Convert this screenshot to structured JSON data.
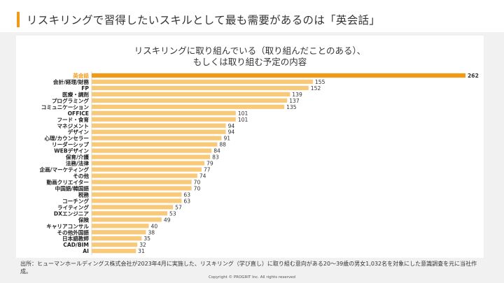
{
  "page": {
    "title": "リスキリングで習得したいスキルとして最も需要があるのは「英会話」",
    "source_note": "出所：ヒューマンホールディングス株式会社が2023年4月に実施した、リスキリング（学び直し）に取り組む意向がある20〜39歳の男女1,032名を対象にした意識調査を元に当社作成。",
    "copyright": "Copyright © PROGRIT Inc. All rights reserved",
    "colors": {
      "accent": "#f29a16",
      "bar": "#f9c97a",
      "highlight": "#f29a16",
      "background": "#f1f1f1"
    }
  },
  "chart_data": {
    "type": "bar",
    "orientation": "horizontal",
    "title_line1": "リスキリングに取り組んでいる（取り組んだことのある）、",
    "title_line2": "もしくは取り組む予定の内容",
    "xlim": [
      0,
      262
    ],
    "highlight_category": "英会話",
    "categories": [
      "英会話",
      "会計/経理/財務",
      "FP",
      "医療・調剤",
      "プログラミング",
      "コミュニケーション",
      "OFFICE",
      "フード・食育",
      "マネジメント",
      "デザイン",
      "心理/カウンセラー",
      "リーダーシップ",
      "WEBデザイン",
      "保育/介護",
      "法務/法律",
      "企画/マーケティング",
      "その他",
      "動画クリエイター",
      "中国語/韓国語",
      "税務",
      "コーチング",
      "ライティング",
      "DXエンジニア",
      "保険",
      "キャリアコンサル",
      "その他外国語",
      "日本語教師",
      "CAD/BIM",
      "AI"
    ],
    "values": [
      262,
      155,
      152,
      139,
      137,
      135,
      101,
      101,
      94,
      94,
      91,
      88,
      84,
      83,
      79,
      77,
      74,
      70,
      70,
      63,
      63,
      57,
      53,
      49,
      40,
      38,
      35,
      32,
      31
    ]
  }
}
